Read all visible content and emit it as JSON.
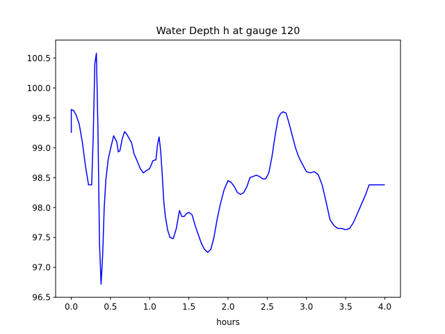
{
  "chart_data": {
    "type": "line",
    "title": "Water Depth h at gauge 120",
    "xlabel": "hours",
    "ylabel": "",
    "xlim": [
      -0.2,
      4.2
    ],
    "ylim": [
      96.5,
      100.8
    ],
    "xticks": [
      0.0,
      0.5,
      1.0,
      1.5,
      2.0,
      2.5,
      3.0,
      3.5,
      4.0
    ],
    "xtick_labels": [
      "0.0",
      "0.5",
      "1.0",
      "1.5",
      "2.0",
      "2.5",
      "3.0",
      "3.5",
      "4.0"
    ],
    "yticks": [
      96.5,
      97.0,
      97.5,
      98.0,
      98.5,
      99.0,
      99.5,
      100.0,
      100.5
    ],
    "ytick_labels": [
      "96.5",
      "97.0",
      "97.5",
      "98.0",
      "98.5",
      "99.0",
      "99.5",
      "100.0",
      "100.5"
    ],
    "grid": false,
    "legend": "none",
    "line_color": "#0000ff",
    "series": [
      {
        "x": [
          0.0,
          0.0,
          0.03,
          0.06,
          0.1,
          0.14,
          0.18,
          0.22,
          0.26,
          0.28,
          0.3,
          0.32,
          0.34,
          0.36,
          0.38,
          0.4,
          0.42,
          0.44,
          0.47,
          0.5,
          0.54,
          0.58,
          0.6,
          0.62,
          0.65,
          0.68,
          0.71,
          0.74,
          0.77,
          0.8,
          0.84,
          0.88,
          0.92,
          0.96,
          1.0,
          1.04,
          1.08,
          1.1,
          1.12,
          1.14,
          1.16,
          1.18,
          1.2,
          1.23,
          1.26,
          1.3,
          1.34,
          1.38,
          1.41,
          1.44,
          1.47,
          1.5,
          1.54,
          1.58,
          1.62,
          1.66,
          1.7,
          1.74,
          1.78,
          1.82,
          1.86,
          1.9,
          1.95,
          2.0,
          2.04,
          2.08,
          2.12,
          2.16,
          2.2,
          2.24,
          2.28,
          2.32,
          2.36,
          2.4,
          2.44,
          2.48,
          2.52,
          2.56,
          2.6,
          2.64,
          2.67,
          2.7,
          2.74,
          2.78,
          2.82,
          2.86,
          2.9,
          2.95,
          3.0,
          3.05,
          3.1,
          3.15,
          3.2,
          3.25,
          3.3,
          3.35,
          3.4,
          3.45,
          3.5,
          3.55,
          3.6,
          3.65,
          3.7,
          3.75,
          3.8,
          3.85,
          3.9,
          3.95,
          4.0
        ],
        "y": [
          99.25,
          99.64,
          99.62,
          99.55,
          99.4,
          99.1,
          98.7,
          98.38,
          98.38,
          99.2,
          100.4,
          100.58,
          99.3,
          97.4,
          96.72,
          97.2,
          98.0,
          98.45,
          98.8,
          98.98,
          99.2,
          99.1,
          98.93,
          98.95,
          99.15,
          99.27,
          99.22,
          99.15,
          99.08,
          98.9,
          98.78,
          98.65,
          98.58,
          98.62,
          98.65,
          98.78,
          98.8,
          99.05,
          99.18,
          98.95,
          98.55,
          98.1,
          97.85,
          97.62,
          97.5,
          97.48,
          97.65,
          97.95,
          97.85,
          97.85,
          97.9,
          97.92,
          97.88,
          97.7,
          97.55,
          97.4,
          97.3,
          97.25,
          97.3,
          97.5,
          97.8,
          98.05,
          98.3,
          98.45,
          98.42,
          98.35,
          98.25,
          98.22,
          98.25,
          98.35,
          98.5,
          98.52,
          98.54,
          98.52,
          98.48,
          98.48,
          98.58,
          98.85,
          99.2,
          99.5,
          99.57,
          99.6,
          99.58,
          99.4,
          99.2,
          99.0,
          98.85,
          98.72,
          98.6,
          98.58,
          98.6,
          98.55,
          98.38,
          98.1,
          97.8,
          97.7,
          97.65,
          97.65,
          97.63,
          97.65,
          97.75,
          97.9,
          98.05,
          98.2,
          98.38,
          98.38,
          98.38,
          98.38,
          98.38
        ]
      }
    ]
  }
}
